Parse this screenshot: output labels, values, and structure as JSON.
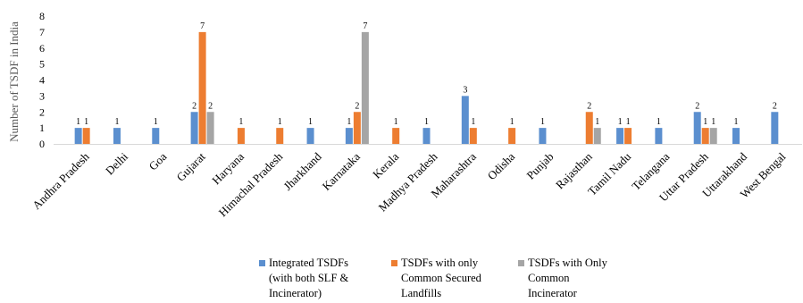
{
  "chart_data": {
    "type": "bar",
    "ylabel": "Number of TSDF in India",
    "ylim": [
      0,
      8
    ],
    "yticks": [
      0,
      1,
      2,
      3,
      4,
      5,
      6,
      7,
      8
    ],
    "grid": false,
    "legend_position": "bottom",
    "categories": [
      "Andhra Pradesh",
      "Delhi",
      "Goa",
      "Gujarat",
      "Haryana",
      "Himachal Pradesh",
      "Jharkhand",
      "Karnataka",
      "Kerala",
      "Madhya Pradesh",
      "Maharashtra",
      "Odisha",
      "Punjab",
      "Rajasthan",
      "Tamil Nadu",
      "Telangana",
      "Uttar Pradesh",
      "Uttarakhand",
      "West Bengal"
    ],
    "series": [
      {
        "name": "Integrated TSDFs\n(with both SLF &\nIncinerator)",
        "color": "#5b8fcf",
        "values": [
          1,
          1,
          1,
          2,
          null,
          null,
          1,
          1,
          null,
          1,
          3,
          null,
          1,
          null,
          1,
          1,
          2,
          1,
          2
        ]
      },
      {
        "name": "TSDFs with only\nCommon Secured\nLandfills",
        "color": "#ed7d31",
        "values": [
          1,
          null,
          null,
          7,
          1,
          1,
          null,
          2,
          1,
          null,
          1,
          1,
          null,
          2,
          1,
          null,
          1,
          null,
          null
        ]
      },
      {
        "name": "TSDFs with Only\nCommon\nIncinerator",
        "color": "#a5a5a5",
        "values": [
          null,
          null,
          null,
          2,
          null,
          null,
          null,
          7,
          null,
          null,
          null,
          null,
          null,
          1,
          null,
          null,
          1,
          null,
          null
        ]
      }
    ]
  }
}
